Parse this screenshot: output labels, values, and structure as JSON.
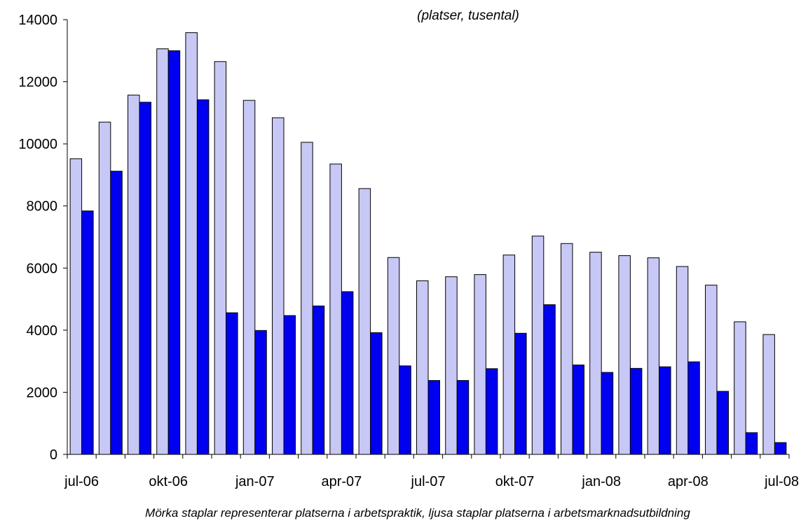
{
  "chart_data": {
    "type": "bar",
    "subtitle": "(platser, tusental)",
    "caption": "Mörka staplar representerar platserna i arbetspraktik, ljusa staplar platserna i arbetsmarknadsutbildning",
    "ylim": [
      0,
      14000
    ],
    "y_ticks": [
      0,
      2000,
      4000,
      6000,
      8000,
      10000,
      12000,
      14000
    ],
    "categories": [
      "jul-06",
      "aug-06",
      "sep-06",
      "okt-06",
      "nov-06",
      "dec-06",
      "jan-07",
      "feb-07",
      "mar-07",
      "apr-07",
      "maj-07",
      "jun-07",
      "jul-07",
      "aug-07",
      "sep-07",
      "okt-07",
      "nov-07",
      "dec-07",
      "jan-08",
      "feb-08",
      "mar-08",
      "apr-08",
      "maj-08",
      "jun-08",
      "jul-08"
    ],
    "x_tick_labels": [
      {
        "index": 0,
        "label": "jul-06"
      },
      {
        "index": 3,
        "label": "okt-06"
      },
      {
        "index": 6,
        "label": "jan-07"
      },
      {
        "index": 9,
        "label": "apr-07"
      },
      {
        "index": 12,
        "label": "jul-07"
      },
      {
        "index": 15,
        "label": "okt-07"
      },
      {
        "index": 18,
        "label": "jan-08"
      },
      {
        "index": 21,
        "label": "apr-08"
      },
      {
        "index": 24,
        "label": "jul-08"
      }
    ],
    "series": [
      {
        "color": "#c8c8f6",
        "values": [
          9520,
          10700,
          11570,
          13060,
          13580,
          12650,
          11400,
          10840,
          10050,
          9350,
          8560,
          6340,
          5590,
          5720,
          5790,
          6420,
          7030,
          6790,
          6510,
          6400,
          6330,
          6050,
          5450,
          4270,
          3860
        ]
      },
      {
        "color": "#0000f0",
        "values": [
          7840,
          9120,
          11340,
          13000,
          11420,
          4560,
          3990,
          4470,
          4780,
          5240,
          3920,
          2850,
          2380,
          2380,
          2760,
          3900,
          4820,
          2880,
          2640,
          2770,
          2820,
          2980,
          2030,
          700,
          380
        ]
      }
    ],
    "grid": false,
    "legend": "none"
  }
}
